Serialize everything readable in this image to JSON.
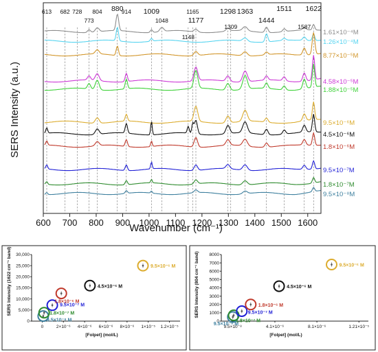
{
  "chart_data": [
    {
      "type": "line",
      "xlabel": "Wavenumber (cm⁻¹)",
      "ylabel": "SERS Intensity (a.u.)",
      "xlim": [
        600,
        1650
      ],
      "xticks": [
        600,
        700,
        800,
        900,
        1000,
        1100,
        1200,
        1300,
        1400,
        1500,
        1600
      ],
      "peaks": [
        {
          "label": "613",
          "x": 613,
          "big": false,
          "row": 0
        },
        {
          "label": "682",
          "x": 682,
          "big": false,
          "row": 0
        },
        {
          "label": "728",
          "x": 728,
          "big": false,
          "row": 0
        },
        {
          "label": "773",
          "x": 773,
          "big": false,
          "row": 1
        },
        {
          "label": "804",
          "x": 804,
          "big": false,
          "row": 0
        },
        {
          "label": "880",
          "x": 880,
          "big": true,
          "row": -1
        },
        {
          "label": "914",
          "x": 914,
          "big": false,
          "row": 0
        },
        {
          "label": "1009",
          "x": 1009,
          "big": true,
          "row": 0
        },
        {
          "label": "1048",
          "x": 1048,
          "big": false,
          "row": 1
        },
        {
          "label": "1148",
          "x": 1148,
          "big": false,
          "row": 3
        },
        {
          "label": "1165",
          "x": 1165,
          "big": false,
          "row": 0
        },
        {
          "label": "1177",
          "x": 1177,
          "big": true,
          "row": 1
        },
        {
          "label": "1298",
          "x": 1298,
          "big": true,
          "row": 0
        },
        {
          "label": "1309",
          "x": 1309,
          "big": false,
          "row": 2
        },
        {
          "label": "1363",
          "x": 1363,
          "big": true,
          "row": 0
        },
        {
          "label": "1444",
          "x": 1444,
          "big": true,
          "row": 1
        },
        {
          "label": "1511",
          "x": 1511,
          "big": true,
          "row": -1
        },
        {
          "label": "1587",
          "x": 1587,
          "big": false,
          "row": 2
        },
        {
          "label": "1622",
          "x": 1622,
          "big": true,
          "row": -1
        }
      ],
      "series": [
        {
          "name": "1.61×10⁻⁴M",
          "color": "#8c8c8c"
        },
        {
          "name": "1.26×10⁻⁴M",
          "color": "#56d4f0"
        },
        {
          "name": "8.77×10⁻⁵M",
          "color": "#d2962b"
        },
        {
          "name": "4.58×10⁻⁵M",
          "color": "#cc38d6"
        },
        {
          "name": "1.88×10⁻⁵M",
          "color": "#3fd13a"
        },
        {
          "name": "9.5×10⁻⁶M",
          "color": "#dcac2e"
        },
        {
          "name": "4.5×10⁻⁶M",
          "color": "#111111"
        },
        {
          "name": "1.8×10⁻⁶M",
          "color": "#c0392b"
        },
        {
          "name": "9.5×10⁻⁷M",
          "color": "#1f1fd6"
        },
        {
          "name": "1.8×10⁻⁷M",
          "color": "#2e8b2e"
        },
        {
          "name": "9.5×10⁻⁸M",
          "color": "#3d7f9e"
        }
      ]
    },
    {
      "type": "scatter",
      "xlabel": "[Folpet] (mol/L)",
      "ylabel": "SERS Intensity (1622 cm⁻¹ band)",
      "xlim": [
        -1e-06,
        1.3e-05
      ],
      "ylim": [
        0,
        30000
      ],
      "yticks": [
        "0",
        "5,000",
        "10,000",
        "15,000",
        "20,000",
        "25,000",
        "30,000"
      ],
      "ytick_values": [
        0,
        5000,
        10000,
        15000,
        20000,
        25000,
        30000
      ],
      "xticks": [
        "0",
        "2×10⁻⁶",
        "4×10⁻⁶",
        "6×10⁻⁶",
        "8×10⁻⁶",
        "1×10⁻⁵",
        "1.2×10⁻⁵"
      ],
      "xtick_values": [
        0,
        2e-06,
        4e-06,
        6e-06,
        8e-06,
        1e-05,
        1.2e-05
      ],
      "points": [
        {
          "label": "9.5×10⁻⁸ M",
          "x": 9.5e-08,
          "y": 2300,
          "color": "#3d7f9e"
        },
        {
          "label": "1.8×10⁻⁷ M",
          "x": 1.8e-07,
          "y": 3800,
          "color": "#2e8b2e"
        },
        {
          "label": "9.5×10⁻⁷ M",
          "x": 9.5e-07,
          "y": 7200,
          "color": "#1f1fd6"
        },
        {
          "label": "1.8×10⁻⁶ M",
          "x": 1.8e-06,
          "y": 12500,
          "color": "#c0392b"
        },
        {
          "label": "4.5×10⁻⁶ M",
          "x": 4.5e-06,
          "y": 16000,
          "color": "#111111"
        },
        {
          "label": "9.5×10⁻⁶ M",
          "x": 9.5e-06,
          "y": 25000,
          "color": "#dcac2e"
        }
      ]
    },
    {
      "type": "scatter",
      "xlabel": "[Folpet] (mol/L)",
      "ylabel": "SERS Intensity (804 cm⁻¹ band)",
      "xlim": [
        -1e-06,
        1.3e-05
      ],
      "ylim": [
        0,
        8000
      ],
      "yticks": [
        "0",
        "1000",
        "2000",
        "3000",
        "4000",
        "5000",
        "6000",
        "7000",
        "8000"
      ],
      "ytick_values": [
        0,
        1000,
        2000,
        3000,
        4000,
        5000,
        6000,
        7000,
        8000
      ],
      "xticks": [
        "9.5×10⁻⁸",
        "4.1×10⁻⁶",
        "8.1×10⁻⁶",
        "1.21×10⁻⁵"
      ],
      "xtick_values": [
        9.5e-08,
        4.1e-06,
        8.1e-06,
        1.21e-05
      ],
      "points": [
        {
          "label": "9.5×10⁻⁸ M",
          "x": 9.5e-08,
          "y": 500,
          "color": "#3d7f9e"
        },
        {
          "label": "1.8×10⁻⁷ M",
          "x": 1.8e-07,
          "y": 700,
          "color": "#2e8b2e"
        },
        {
          "label": "9.5×10⁻⁷ M",
          "x": 9.5e-07,
          "y": 1200,
          "color": "#1f1fd6"
        },
        {
          "label": "1.8×10⁻⁶ M",
          "x": 1.8e-06,
          "y": 2000,
          "color": "#c0392b"
        },
        {
          "label": "4.5×10⁻⁶ M",
          "x": 4.5e-06,
          "y": 4200,
          "color": "#111111"
        },
        {
          "label": "9.5×10⁻⁶ M",
          "x": 9.5e-06,
          "y": 6800,
          "color": "#dcac2e"
        }
      ]
    }
  ]
}
